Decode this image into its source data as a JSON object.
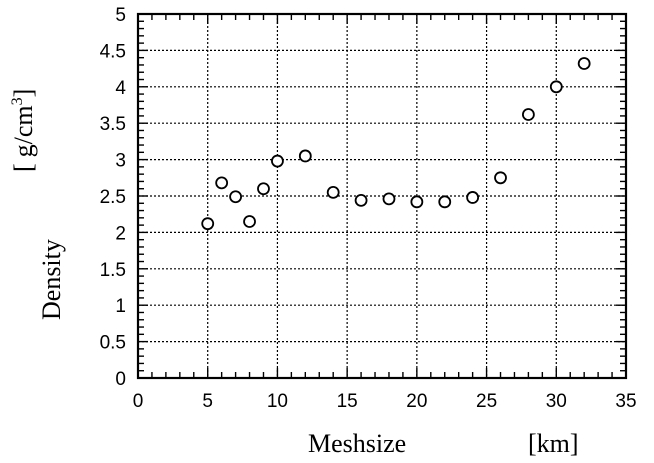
{
  "chart_data": {
    "type": "scatter",
    "xlabel": "Meshsize",
    "xunit": "[km]",
    "ylabel": "Density",
    "yunit_open": "[",
    "yunit_main": "g/cm",
    "yunit_sup": "3",
    "yunit_close": "]",
    "xlim": [
      0,
      35
    ],
    "ylim": [
      0,
      5
    ],
    "xticks": [
      0,
      5,
      10,
      15,
      20,
      25,
      30,
      35
    ],
    "yticks": [
      0,
      0.5,
      1,
      1.5,
      2,
      2.5,
      3,
      3.5,
      4,
      4.5,
      5
    ],
    "xtick_labels": [
      "0",
      "5",
      "10",
      "15",
      "20",
      "25",
      "30",
      "35"
    ],
    "ytick_labels": [
      "0",
      "0.5",
      "1",
      "1.5",
      "2",
      "2.5",
      "3",
      "3.5",
      "4",
      "4.5",
      "5"
    ],
    "grid": true,
    "marker": "open-circle",
    "color": "#000000",
    "points": [
      {
        "x": 5,
        "y": 2.12
      },
      {
        "x": 6,
        "y": 2.68
      },
      {
        "x": 7,
        "y": 2.49
      },
      {
        "x": 8,
        "y": 2.15
      },
      {
        "x": 9,
        "y": 2.6
      },
      {
        "x": 10,
        "y": 2.98
      },
      {
        "x": 12,
        "y": 3.05
      },
      {
        "x": 14,
        "y": 2.55
      },
      {
        "x": 16,
        "y": 2.44
      },
      {
        "x": 18,
        "y": 2.46
      },
      {
        "x": 20,
        "y": 2.42
      },
      {
        "x": 22,
        "y": 2.42
      },
      {
        "x": 24,
        "y": 2.48
      },
      {
        "x": 26,
        "y": 2.75
      },
      {
        "x": 28,
        "y": 3.62
      },
      {
        "x": 30,
        "y": 4.0
      },
      {
        "x": 32,
        "y": 4.32
      }
    ]
  }
}
